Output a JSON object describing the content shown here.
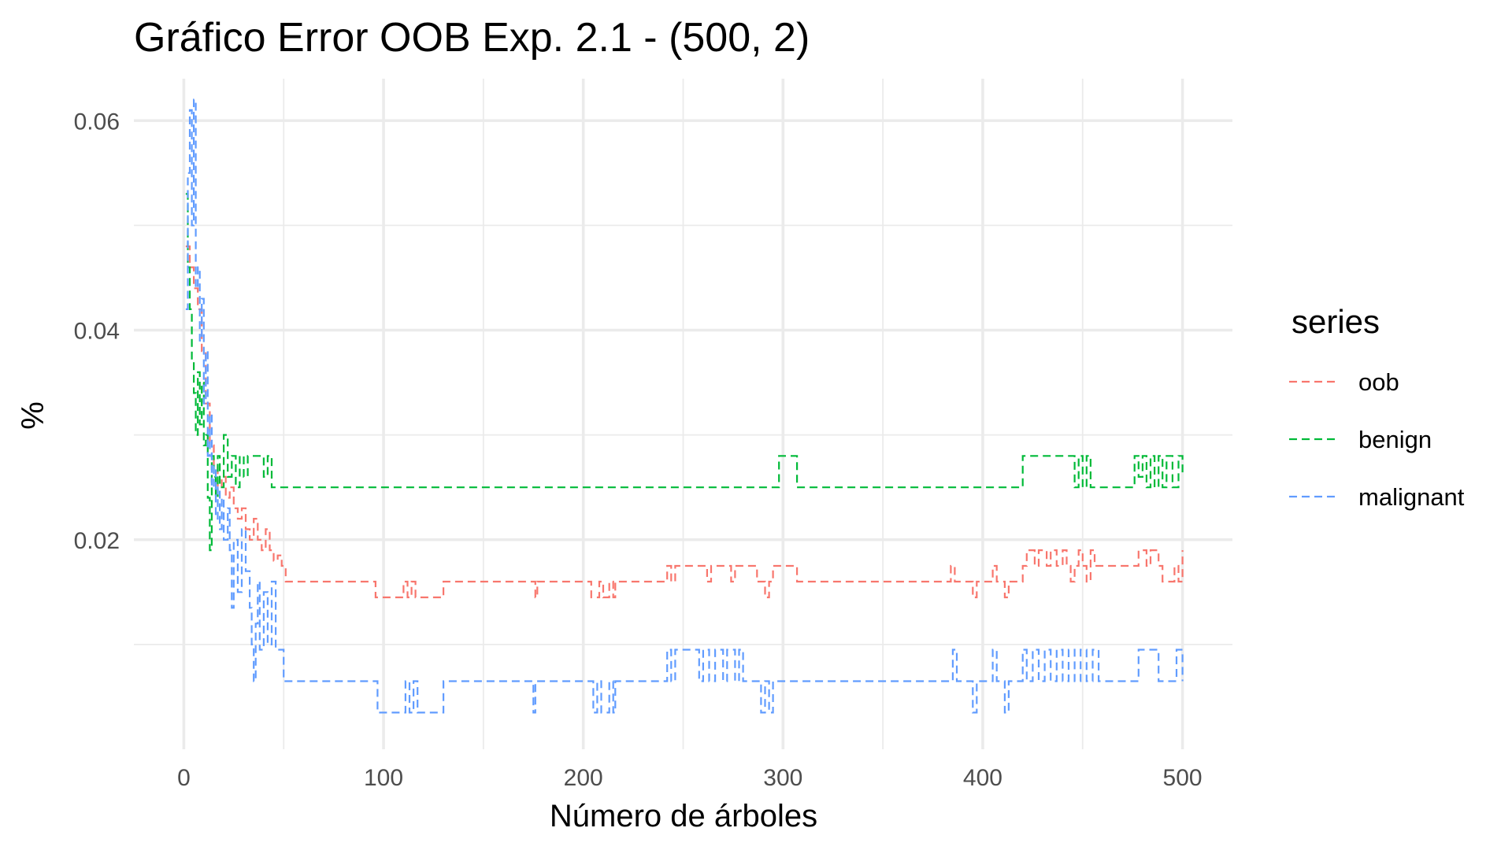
{
  "chart_data": {
    "type": "line",
    "title": "Gráfico Error OOB Exp. 2.1 - (500, 2)",
    "xlabel": "Número de árboles",
    "ylabel": "%",
    "xlim": [
      -25,
      525
    ],
    "ylim": [
      0.0,
      0.064
    ],
    "x_ticks": [
      0,
      100,
      200,
      300,
      400,
      500
    ],
    "x_tick_labels": [
      "0",
      "100",
      "200",
      "300",
      "400",
      "500"
    ],
    "y_ticks": [
      0.02,
      0.04,
      0.06
    ],
    "y_tick_labels": [
      "0.02",
      "0.04",
      "0.06"
    ],
    "grid": true,
    "line_style": "dashed",
    "legend": {
      "title": "series",
      "position": "right"
    },
    "series": [
      {
        "name": "oob",
        "color": "#F8766D",
        "points": [
          [
            1,
            0.048
          ],
          [
            3,
            0.046
          ],
          [
            5,
            0.044
          ],
          [
            7,
            0.042
          ],
          [
            9,
            0.038
          ],
          [
            11,
            0.033
          ],
          [
            13,
            0.029
          ],
          [
            15,
            0.027
          ],
          [
            17,
            0.025
          ],
          [
            19,
            0.026
          ],
          [
            21,
            0.024
          ],
          [
            23,
            0.025
          ],
          [
            25,
            0.023
          ],
          [
            27,
            0.022
          ],
          [
            29,
            0.023
          ],
          [
            31,
            0.021
          ],
          [
            33,
            0.02
          ],
          [
            35,
            0.022
          ],
          [
            37,
            0.02
          ],
          [
            39,
            0.019
          ],
          [
            41,
            0.021
          ],
          [
            43,
            0.019
          ],
          [
            45,
            0.018
          ],
          [
            47,
            0.0185
          ],
          [
            49,
            0.0175
          ],
          [
            51,
            0.016
          ],
          [
            95,
            0.016
          ],
          [
            96,
            0.0145
          ],
          [
            108,
            0.0145
          ],
          [
            110,
            0.016
          ],
          [
            112,
            0.0145
          ],
          [
            114,
            0.016
          ],
          [
            116,
            0.0145
          ],
          [
            128,
            0.0145
          ],
          [
            130,
            0.016
          ],
          [
            175,
            0.016
          ],
          [
            176,
            0.0145
          ],
          [
            177,
            0.016
          ],
          [
            203,
            0.016
          ],
          [
            204,
            0.0145
          ],
          [
            208,
            0.016
          ],
          [
            210,
            0.0145
          ],
          [
            213,
            0.016
          ],
          [
            215,
            0.0145
          ],
          [
            216,
            0.016
          ],
          [
            240,
            0.016
          ],
          [
            242,
            0.0175
          ],
          [
            244,
            0.016
          ],
          [
            246,
            0.0175
          ],
          [
            260,
            0.0175
          ],
          [
            262,
            0.016
          ],
          [
            264,
            0.0175
          ],
          [
            272,
            0.0175
          ],
          [
            274,
            0.016
          ],
          [
            276,
            0.0175
          ],
          [
            285,
            0.0175
          ],
          [
            287,
            0.016
          ],
          [
            289,
            0.016
          ],
          [
            291,
            0.0145
          ],
          [
            293,
            0.016
          ],
          [
            295,
            0.0175
          ],
          [
            305,
            0.0175
          ],
          [
            307,
            0.016
          ],
          [
            382,
            0.016
          ],
          [
            384,
            0.0175
          ],
          [
            386,
            0.016
          ],
          [
            393,
            0.016
          ],
          [
            395,
            0.0145
          ],
          [
            397,
            0.016
          ],
          [
            403,
            0.016
          ],
          [
            405,
            0.0175
          ],
          [
            407,
            0.016
          ],
          [
            409,
            0.016
          ],
          [
            411,
            0.0145
          ],
          [
            413,
            0.016
          ],
          [
            418,
            0.016
          ],
          [
            420,
            0.0175
          ],
          [
            422,
            0.019
          ],
          [
            426,
            0.0175
          ],
          [
            428,
            0.019
          ],
          [
            432,
            0.0175
          ],
          [
            434,
            0.019
          ],
          [
            437,
            0.0175
          ],
          [
            440,
            0.019
          ],
          [
            442,
            0.0175
          ],
          [
            444,
            0.016
          ],
          [
            446,
            0.0175
          ],
          [
            448,
            0.019
          ],
          [
            450,
            0.0175
          ],
          [
            452,
            0.016
          ],
          [
            454,
            0.019
          ],
          [
            456,
            0.0175
          ],
          [
            476,
            0.0175
          ],
          [
            478,
            0.019
          ],
          [
            482,
            0.0175
          ],
          [
            484,
            0.019
          ],
          [
            488,
            0.0175
          ],
          [
            490,
            0.016
          ],
          [
            494,
            0.016
          ],
          [
            496,
            0.0175
          ],
          [
            498,
            0.016
          ],
          [
            500,
            0.019
          ]
        ]
      },
      {
        "name": "benign",
        "color": "#00BA38",
        "points": [
          [
            1,
            0.053
          ],
          [
            2,
            0.046
          ],
          [
            3,
            0.042
          ],
          [
            4,
            0.037
          ],
          [
            5,
            0.034
          ],
          [
            6,
            0.03
          ],
          [
            7,
            0.036
          ],
          [
            8,
            0.031
          ],
          [
            9,
            0.035
          ],
          [
            10,
            0.029
          ],
          [
            11,
            0.03
          ],
          [
            12,
            0.024
          ],
          [
            13,
            0.019
          ],
          [
            14,
            0.028
          ],
          [
            15,
            0.026
          ],
          [
            16,
            0.024
          ],
          [
            17,
            0.028
          ],
          [
            18,
            0.025
          ],
          [
            20,
            0.03
          ],
          [
            22,
            0.026
          ],
          [
            24,
            0.028
          ],
          [
            26,
            0.025
          ],
          [
            28,
            0.028
          ],
          [
            30,
            0.026
          ],
          [
            32,
            0.028
          ],
          [
            38,
            0.028
          ],
          [
            40,
            0.026
          ],
          [
            42,
            0.028
          ],
          [
            44,
            0.025
          ],
          [
            296,
            0.025
          ],
          [
            298,
            0.028
          ],
          [
            305,
            0.028
          ],
          [
            307,
            0.025
          ],
          [
            418,
            0.025
          ],
          [
            420,
            0.028
          ],
          [
            444,
            0.028
          ],
          [
            446,
            0.025
          ],
          [
            448,
            0.028
          ],
          [
            450,
            0.025
          ],
          [
            452,
            0.028
          ],
          [
            454,
            0.025
          ],
          [
            474,
            0.025
          ],
          [
            476,
            0.028
          ],
          [
            478,
            0.026
          ],
          [
            480,
            0.028
          ],
          [
            482,
            0.025
          ],
          [
            484,
            0.028
          ],
          [
            486,
            0.025
          ],
          [
            488,
            0.028
          ],
          [
            490,
            0.025
          ],
          [
            492,
            0.028
          ],
          [
            495,
            0.025
          ],
          [
            498,
            0.028
          ],
          [
            500,
            0.026
          ]
        ]
      },
      {
        "name": "malignant",
        "color": "#619CFF",
        "points": [
          [
            1,
            0.042
          ],
          [
            2,
            0.055
          ],
          [
            3,
            0.061
          ],
          [
            4,
            0.05
          ],
          [
            5,
            0.062
          ],
          [
            6,
            0.044
          ],
          [
            7,
            0.046
          ],
          [
            8,
            0.039
          ],
          [
            9,
            0.043
          ],
          [
            10,
            0.033
          ],
          [
            11,
            0.038
          ],
          [
            12,
            0.028
          ],
          [
            13,
            0.032
          ],
          [
            14,
            0.025
          ],
          [
            15,
            0.027
          ],
          [
            16,
            0.022
          ],
          [
            17,
            0.025
          ],
          [
            18,
            0.021
          ],
          [
            19,
            0.024
          ],
          [
            20,
            0.02
          ],
          [
            22,
            0.023
          ],
          [
            23,
            0.019
          ],
          [
            24,
            0.0135
          ],
          [
            25,
            0.02
          ],
          [
            27,
            0.015
          ],
          [
            29,
            0.021
          ],
          [
            31,
            0.017
          ],
          [
            33,
            0.0135
          ],
          [
            34,
            0.01
          ],
          [
            35,
            0.0065
          ],
          [
            36,
            0.012
          ],
          [
            37,
            0.016
          ],
          [
            38,
            0.0095
          ],
          [
            40,
            0.015
          ],
          [
            42,
            0.01
          ],
          [
            44,
            0.016
          ],
          [
            46,
            0.0095
          ],
          [
            48,
            0.0095
          ],
          [
            50,
            0.0065
          ],
          [
            95,
            0.0065
          ],
          [
            97,
            0.0035
          ],
          [
            109,
            0.0035
          ],
          [
            111,
            0.0065
          ],
          [
            113,
            0.0035
          ],
          [
            115,
            0.0065
          ],
          [
            117,
            0.0035
          ],
          [
            128,
            0.0035
          ],
          [
            130,
            0.0065
          ],
          [
            174,
            0.0065
          ],
          [
            175,
            0.0035
          ],
          [
            176,
            0.0065
          ],
          [
            203,
            0.0065
          ],
          [
            205,
            0.0035
          ],
          [
            207,
            0.0065
          ],
          [
            209,
            0.0035
          ],
          [
            213,
            0.0065
          ],
          [
            215,
            0.0035
          ],
          [
            216,
            0.0065
          ],
          [
            240,
            0.0065
          ],
          [
            242,
            0.0095
          ],
          [
            244,
            0.0065
          ],
          [
            246,
            0.0095
          ],
          [
            256,
            0.0095
          ],
          [
            258,
            0.0065
          ],
          [
            260,
            0.0095
          ],
          [
            263,
            0.0065
          ],
          [
            266,
            0.0095
          ],
          [
            270,
            0.0065
          ],
          [
            272,
            0.0095
          ],
          [
            276,
            0.0065
          ],
          [
            278,
            0.0095
          ],
          [
            280,
            0.0065
          ],
          [
            287,
            0.0065
          ],
          [
            289,
            0.0035
          ],
          [
            291,
            0.0065
          ],
          [
            293,
            0.0035
          ],
          [
            295,
            0.0065
          ],
          [
            383,
            0.0065
          ],
          [
            385,
            0.0095
          ],
          [
            387,
            0.0065
          ],
          [
            393,
            0.0065
          ],
          [
            395,
            0.0035
          ],
          [
            397,
            0.0065
          ],
          [
            403,
            0.0065
          ],
          [
            405,
            0.0095
          ],
          [
            407,
            0.0065
          ],
          [
            409,
            0.0065
          ],
          [
            411,
            0.0035
          ],
          [
            413,
            0.0065
          ],
          [
            418,
            0.0065
          ],
          [
            420,
            0.0095
          ],
          [
            422,
            0.0065
          ],
          [
            425,
            0.0095
          ],
          [
            428,
            0.0065
          ],
          [
            431,
            0.0095
          ],
          [
            434,
            0.0065
          ],
          [
            437,
            0.0095
          ],
          [
            440,
            0.0065
          ],
          [
            443,
            0.0095
          ],
          [
            446,
            0.0065
          ],
          [
            449,
            0.0095
          ],
          [
            452,
            0.0065
          ],
          [
            455,
            0.0095
          ],
          [
            458,
            0.0065
          ],
          [
            476,
            0.0065
          ],
          [
            478,
            0.0095
          ],
          [
            486,
            0.0095
          ],
          [
            488,
            0.0065
          ],
          [
            495,
            0.0065
          ],
          [
            497,
            0.0095
          ],
          [
            500,
            0.0065
          ]
        ]
      }
    ]
  }
}
